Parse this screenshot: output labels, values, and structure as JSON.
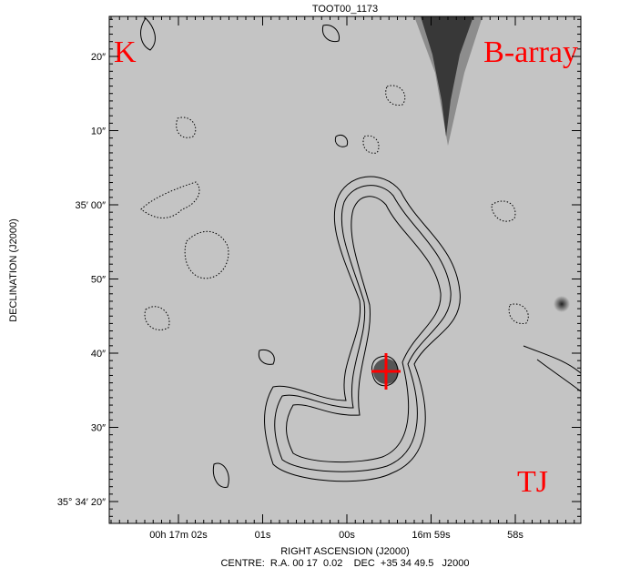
{
  "title": "TOOT00_1173",
  "annotations": {
    "top_left": "K",
    "top_right": "B-array",
    "bottom_right": "TJ"
  },
  "y_axis": {
    "label": "DECLINATION (J2000)",
    "ticks": [
      "20″",
      "10″",
      "35′ 00″",
      "50″",
      "40″",
      "30″",
      "35° 34′ 20″"
    ]
  },
  "x_axis": {
    "label": "RIGHT ASCENSION (J2000)",
    "ticks": [
      "00h 17m 02s",
      "01s",
      "00s",
      "16m 59s",
      "58s"
    ]
  },
  "centre": "CENTRE:  R.A. 00 17  0.02    DEC  +35 34 49.5   J2000"
}
